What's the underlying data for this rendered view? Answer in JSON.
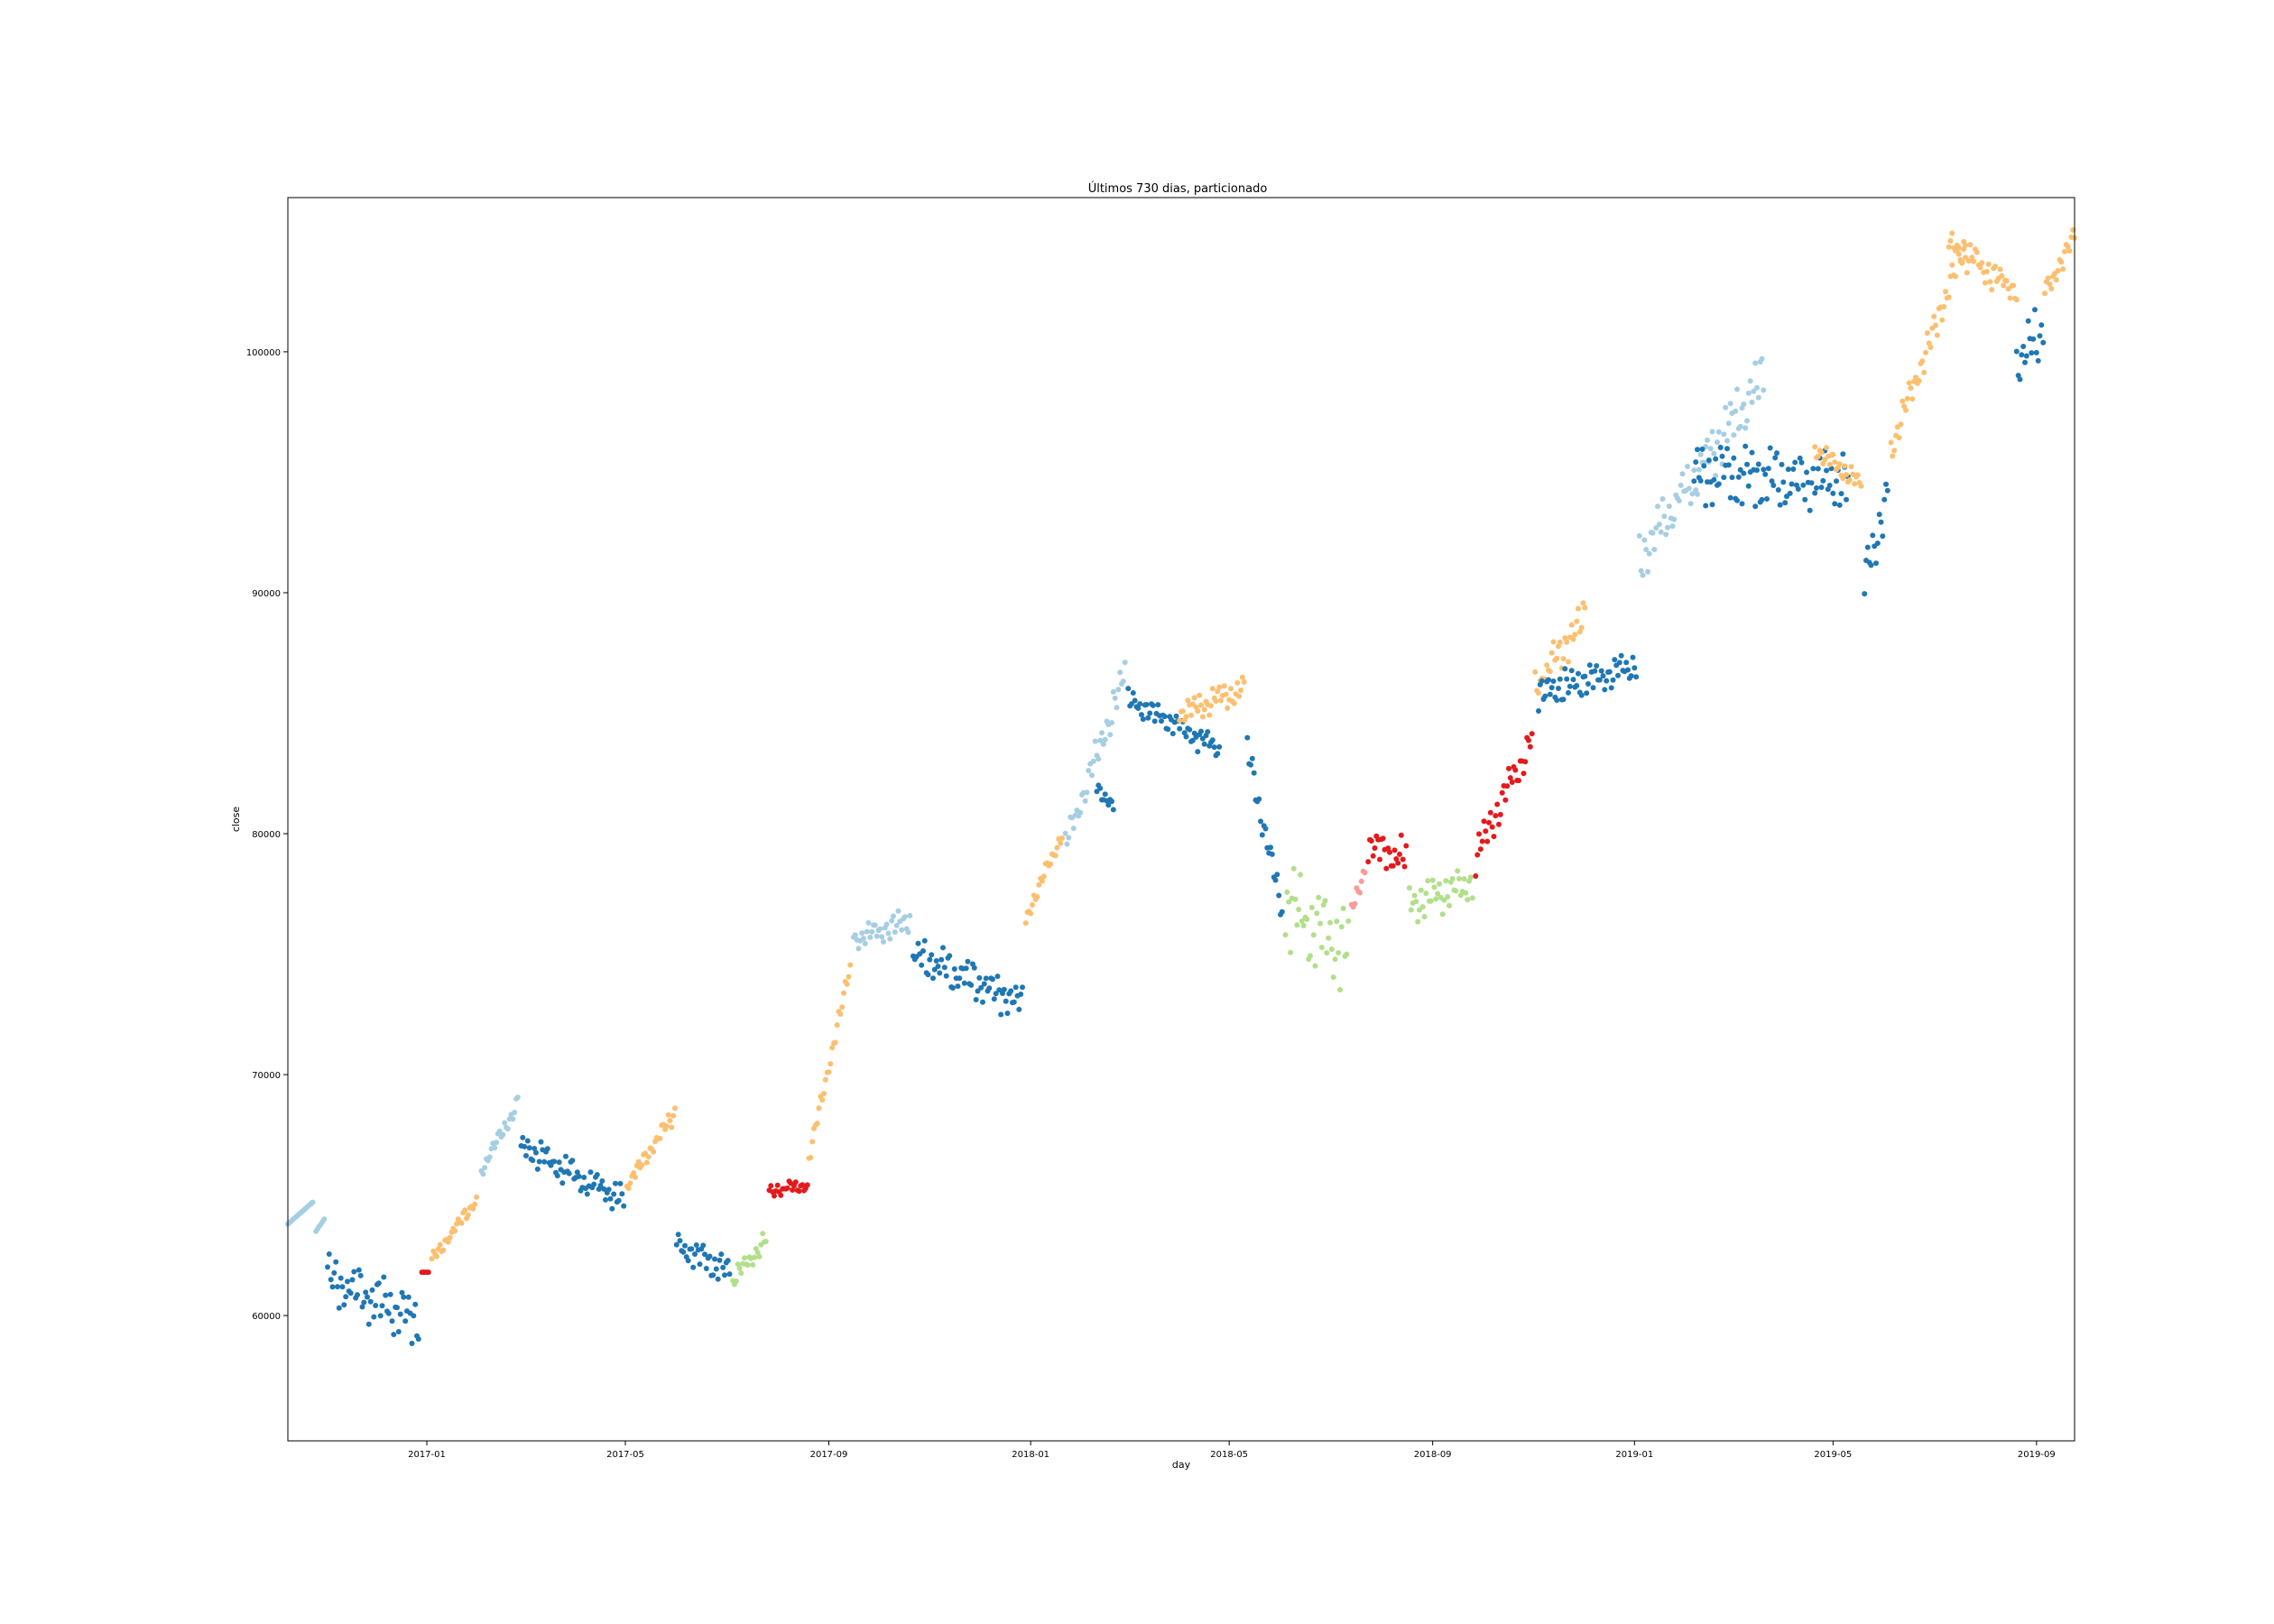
{
  "chart_data": {
    "type": "scatter",
    "title": "Últimos 730 dias, particionado",
    "xlabel": "day",
    "ylabel": "close",
    "xlim": [
      "2016-10-09",
      "2019-09-24"
    ],
    "ylim": [
      54800,
      106400
    ],
    "x_ticks": [
      "2017-01",
      "2017-05",
      "2017-09",
      "2018-01",
      "2018-05",
      "2018-09",
      "2019-01",
      "2019-05",
      "2019-09"
    ],
    "y_ticks": [
      "60000",
      "70000",
      "80000",
      "90000",
      "100000"
    ],
    "grid": false,
    "legend": "none",
    "point_colors": {
      "A": "#1f77b4",
      "B": "#a6cee3",
      "C": "#fdbf6f",
      "D": "#b2df8a",
      "E": "#e31a1c",
      "F": "#fb9a99",
      "G": "#33a02c"
    },
    "segments": [
      {
        "start": "2016-10-09",
        "end": "2016-10-24",
        "v0": 63800,
        "v1": 64700,
        "color": "B"
      },
      {
        "start": "2016-10-26",
        "end": "2016-10-31",
        "v0": 63500,
        "v1": 64000,
        "color": "B"
      },
      {
        "start": "2016-11-02",
        "end": "2016-12-27",
        "v0": 61500,
        "v1": 59800,
        "color": "A",
        "amp": 1300
      },
      {
        "start": "2016-12-29",
        "end": "2017-01-02",
        "v0": 61800,
        "v1": 61800,
        "color": "E"
      },
      {
        "start": "2017-01-04",
        "end": "2017-01-31",
        "v0": 62300,
        "v1": 64800,
        "color": "C",
        "amp": 300
      },
      {
        "start": "2017-02-03",
        "end": "2017-02-25",
        "v0": 66000,
        "v1": 68800,
        "color": "B",
        "amp": 400
      },
      {
        "start": "2017-02-27",
        "end": "2017-04-30",
        "v0": 67000,
        "v1": 64800,
        "color": "A",
        "amp": 700
      },
      {
        "start": "2017-05-02",
        "end": "2017-05-31",
        "v0": 65400,
        "v1": 68400,
        "color": "C",
        "amp": 400
      },
      {
        "start": "2017-06-01",
        "end": "2017-07-03",
        "v0": 63000,
        "v1": 61800,
        "color": "A",
        "amp": 700
      },
      {
        "start": "2017-07-05",
        "end": "2017-07-25",
        "v0": 61500,
        "v1": 63200,
        "color": "D",
        "amp": 500
      },
      {
        "start": "2017-07-27",
        "end": "2017-08-19",
        "v0": 65200,
        "v1": 65400,
        "color": "E",
        "amp": 300
      },
      {
        "start": "2017-08-20",
        "end": "2017-09-14",
        "v0": 66500,
        "v1": 74500,
        "color": "C",
        "amp": 400
      },
      {
        "start": "2017-09-16",
        "end": "2017-10-20",
        "v0": 75600,
        "v1": 76400,
        "color": "B",
        "amp": 600
      },
      {
        "start": "2017-10-22",
        "end": "2017-12-27",
        "v0": 75000,
        "v1": 73000,
        "color": "A",
        "amp": 900
      },
      {
        "start": "2017-12-29",
        "end": "2018-01-20",
        "v0": 76500,
        "v1": 80000,
        "color": "C",
        "amp": 400
      },
      {
        "start": "2018-01-22",
        "end": "2018-02-27",
        "v0": 79500,
        "v1": 86600,
        "color": "B",
        "amp": 800
      },
      {
        "start": "2018-02-10",
        "end": "2018-02-20",
        "v0": 82000,
        "v1": 81000,
        "color": "A",
        "amp": 400
      },
      {
        "start": "2018-03-01",
        "end": "2018-04-25",
        "v0": 85600,
        "v1": 83500,
        "color": "A",
        "amp": 600
      },
      {
        "start": "2018-04-01",
        "end": "2018-05-10",
        "v0": 85000,
        "v1": 86000,
        "color": "C",
        "amp": 600
      },
      {
        "start": "2018-05-12",
        "end": "2018-06-02",
        "v0": 83500,
        "v1": 76800,
        "color": "A",
        "amp": 800
      },
      {
        "start": "2018-06-04",
        "end": "2018-07-12",
        "v0": 77000,
        "v1": 75000,
        "color": "D",
        "amp": 1900
      },
      {
        "start": "2018-07-14",
        "end": "2018-07-22",
        "v0": 76800,
        "v1": 78500,
        "color": "F",
        "amp": 500
      },
      {
        "start": "2018-07-24",
        "end": "2018-08-16",
        "v0": 79500,
        "v1": 79000,
        "color": "E",
        "amp": 900
      },
      {
        "start": "2018-08-18",
        "end": "2018-09-25",
        "v0": 77000,
        "v1": 78000,
        "color": "D",
        "amp": 900
      },
      {
        "start": "2018-09-27",
        "end": "2018-10-31",
        "v0": 79000,
        "v1": 84000,
        "color": "E",
        "amp": 900
      },
      {
        "start": "2018-11-02",
        "end": "2018-12-02",
        "v0": 86000,
        "v1": 89000,
        "color": "C",
        "amp": 900
      },
      {
        "start": "2018-11-04",
        "end": "2019-01-02",
        "v0": 85800,
        "v1": 87000,
        "color": "A",
        "amp": 800
      },
      {
        "start": "2019-01-04",
        "end": "2019-03-20",
        "v0": 91500,
        "v1": 99000,
        "color": "B",
        "amp": 1300
      },
      {
        "start": "2019-02-06",
        "end": "2019-05-10",
        "v0": 95000,
        "v1": 94500,
        "color": "A",
        "amp": 1400
      },
      {
        "start": "2019-04-20",
        "end": "2019-05-18",
        "v0": 96000,
        "v1": 94500,
        "color": "C",
        "amp": 500
      },
      {
        "start": "2019-05-20",
        "end": "2019-06-03",
        "v0": 90500,
        "v1": 94200,
        "color": "A",
        "amp": 1200
      },
      {
        "start": "2019-06-05",
        "end": "2019-07-20",
        "v0": 96000,
        "v1": 104500,
        "color": "C",
        "amp": 800
      },
      {
        "start": "2019-07-10",
        "end": "2019-08-20",
        "v0": 104500,
        "v1": 102500,
        "color": "C",
        "amp": 700
      },
      {
        "start": "2019-08-20",
        "end": "2019-09-05",
        "v0": 99500,
        "v1": 101000,
        "color": "A",
        "amp": 1300
      },
      {
        "start": "2019-09-06",
        "end": "2019-09-24",
        "v0": 102500,
        "v1": 104800,
        "color": "C",
        "amp": 500
      }
    ]
  }
}
